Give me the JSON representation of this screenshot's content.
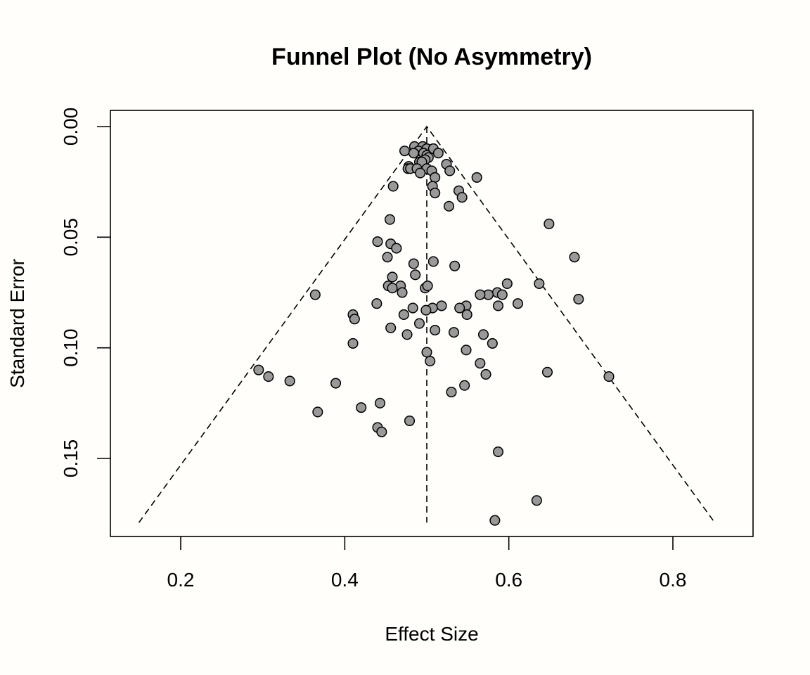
{
  "chart_data": {
    "type": "scatter",
    "title": "Funnel Plot (No Asymmetry)",
    "xlabel": "Effect Size",
    "ylabel": "Standard Error",
    "xlim": [
      0.12,
      0.9
    ],
    "ylim": [
      0.0,
      0.185
    ],
    "y_reversed": true,
    "x_ticks": [
      0.2,
      0.4,
      0.6,
      0.8
    ],
    "x_tick_labels": [
      "0.2",
      "0.4",
      "0.6",
      "0.8"
    ],
    "y_ticks": [
      0.0,
      0.05,
      0.1,
      0.15
    ],
    "y_tick_labels": [
      "0.00",
      "0.05",
      "0.10",
      "0.15"
    ],
    "grid": false,
    "reference_line": {
      "x": 0.5,
      "se_range": [
        0.0,
        0.179
      ]
    },
    "funnel": {
      "apex": [
        0.5,
        0.0
      ],
      "left": [
        0.149,
        0.179
      ],
      "right": [
        0.851,
        0.179
      ]
    },
    "point_color": "#999999",
    "series": [
      {
        "x": [
          0.485,
          0.495,
          0.5,
          0.508,
          0.49,
          0.473,
          0.484,
          0.496,
          0.514,
          0.5,
          0.502,
          0.498,
          0.491,
          0.494,
          0.524,
          0.478,
          0.477,
          0.48,
          0.488,
          0.5,
          0.528,
          0.506,
          0.492,
          0.51,
          0.561,
          0.459,
          0.507,
          0.539,
          0.51,
          0.543,
          0.527,
          0.455,
          0.649,
          0.44,
          0.456,
          0.463,
          0.452,
          0.68,
          0.508,
          0.484,
          0.534,
          0.486,
          0.458,
          0.637,
          0.598,
          0.468,
          0.453,
          0.498,
          0.501,
          0.458,
          0.586,
          0.575,
          0.592,
          0.565,
          0.364,
          0.47,
          0.685,
          0.439,
          0.518,
          0.611,
          0.548,
          0.587,
          0.507,
          0.483,
          0.54,
          0.499,
          0.472,
          0.549,
          0.41,
          0.412,
          0.491,
          0.456,
          0.51,
          0.533,
          0.476,
          0.569,
          0.41,
          0.58,
          0.5,
          0.548,
          0.504,
          0.565,
          0.295,
          0.647,
          0.307,
          0.572,
          0.722,
          0.333,
          0.389,
          0.546,
          0.53,
          0.443,
          0.42,
          0.367,
          0.479,
          0.44,
          0.445,
          0.587,
          0.634,
          0.583
        ],
        "y": [
          0.009,
          0.009,
          0.01,
          0.01,
          0.011,
          0.011,
          0.012,
          0.012,
          0.012,
          0.013,
          0.014,
          0.015,
          0.016,
          0.016,
          0.017,
          0.018,
          0.019,
          0.019,
          0.019,
          0.019,
          0.02,
          0.02,
          0.021,
          0.023,
          0.023,
          0.027,
          0.027,
          0.029,
          0.03,
          0.032,
          0.036,
          0.042,
          0.044,
          0.052,
          0.053,
          0.055,
          0.059,
          0.059,
          0.061,
          0.062,
          0.063,
          0.067,
          0.068,
          0.071,
          0.071,
          0.072,
          0.072,
          0.073,
          0.072,
          0.073,
          0.075,
          0.076,
          0.076,
          0.076,
          0.076,
          0.075,
          0.078,
          0.08,
          0.081,
          0.08,
          0.081,
          0.081,
          0.082,
          0.082,
          0.082,
          0.083,
          0.085,
          0.085,
          0.085,
          0.087,
          0.089,
          0.091,
          0.092,
          0.093,
          0.094,
          0.094,
          0.098,
          0.098,
          0.102,
          0.101,
          0.106,
          0.107,
          0.11,
          0.111,
          0.113,
          0.112,
          0.113,
          0.115,
          0.116,
          0.117,
          0.12,
          0.125,
          0.127,
          0.129,
          0.133,
          0.136,
          0.138,
          0.147,
          0.169,
          0.178
        ]
      }
    ]
  }
}
